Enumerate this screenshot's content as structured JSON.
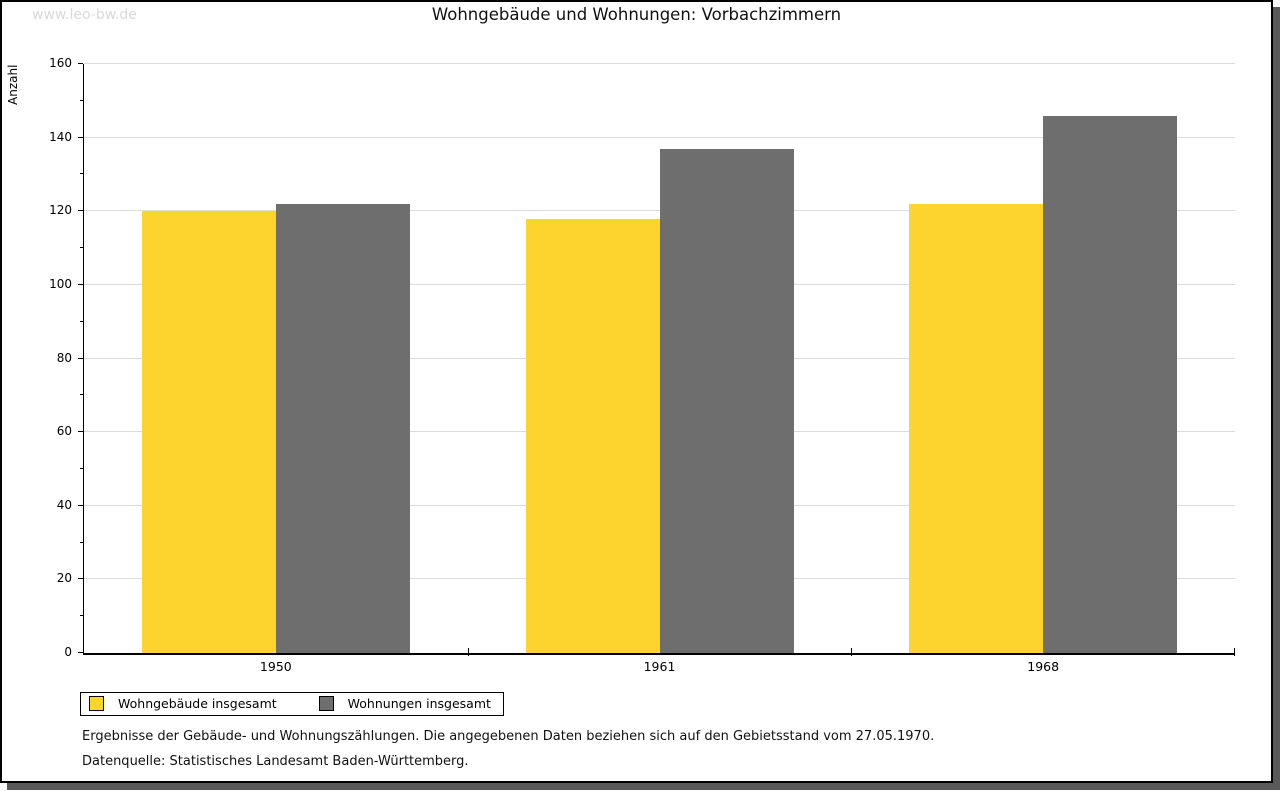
{
  "watermark": "www.leo-bw.de",
  "title": "Wohngebäude und Wohnungen: Vorbachzimmern",
  "chart_data": {
    "type": "bar",
    "categories": [
      "1950",
      "1961",
      "1968"
    ],
    "series": [
      {
        "name": "Wohngebäude insgesamt",
        "color": "#fcd42d",
        "values": [
          120,
          118,
          122
        ]
      },
      {
        "name": "Wohnungen insgesamt",
        "color": "#6e6e6e",
        "values": [
          122,
          137,
          146
        ]
      }
    ],
    "title": "Wohngebäude und Wohnungen: Vorbachzimmern",
    "xlabel": "",
    "ylabel": "Anzahl",
    "ylim": [
      0,
      160
    ],
    "ytick_step": 20,
    "yminor_step": 10,
    "grid": true,
    "legend_position": "bottom-left"
  },
  "colors": {
    "grid": "#dcdcdc",
    "axis": "#000000",
    "shadow": "#5a5a5a",
    "watermark": "#d9d9d9"
  },
  "footer": {
    "line1": "Ergebnisse der Gebäude- und Wohnungszählungen. Die angegebenen Daten beziehen sich auf den Gebietsstand vom 27.05.1970.",
    "line2": "Datenquelle: Statistisches Landesamt Baden-Württemberg."
  }
}
